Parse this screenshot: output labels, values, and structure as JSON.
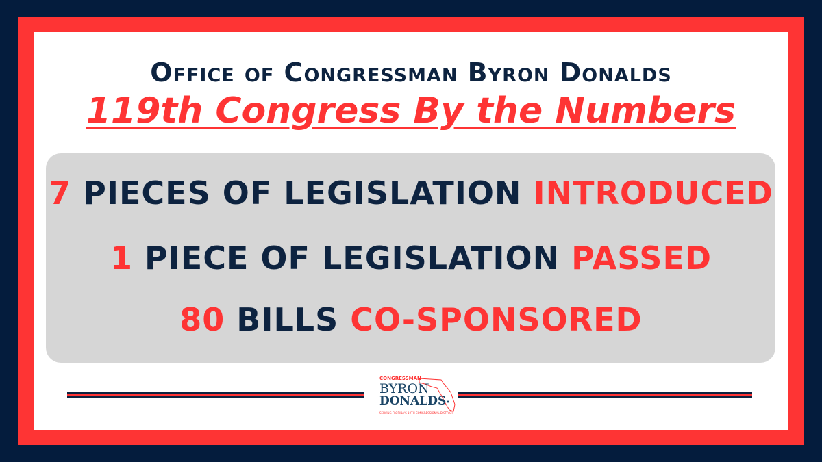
{
  "header": {
    "office": "Office of Congressman Byron Donalds",
    "title": "119th Congress By the Numbers"
  },
  "stats": [
    {
      "number": "7",
      "text": "PIECES OF LEGISLATION",
      "action": "INTRODUCED"
    },
    {
      "number": "1",
      "text": "PIECE OF LEGISLATION",
      "action": "PASSED"
    },
    {
      "number": "80",
      "text": "BILLS",
      "action": "CO-SPONSORED"
    }
  ],
  "logo": {
    "top": "CONGRESSMAN",
    "first": "BYRON",
    "last": "DONALDS",
    "tagline": "SERVING FLORIDA'S 19TH CONGRESSIONAL DISTRICT"
  },
  "colors": {
    "navy": "#041c3d",
    "red": "#fe3434",
    "gray": "#d6d6d6"
  }
}
